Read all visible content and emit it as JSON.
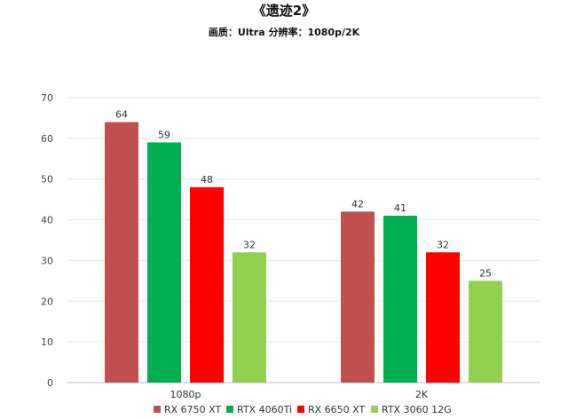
{
  "chart_data": {
    "type": "bar",
    "title": "《遗迹2》",
    "subtitle": "画质：Ultra  分辨率：1080p/2K",
    "categories": [
      "1080p",
      "2K"
    ],
    "series": [
      {
        "name": "RX 6750 XT",
        "color": "#C0504D",
        "values": [
          64,
          42
        ]
      },
      {
        "name": "RTX 4060Ti",
        "color": "#00B050",
        "values": [
          59,
          41
        ]
      },
      {
        "name": "RX 6650 XT",
        "color": "#FF0000",
        "values": [
          48,
          32
        ]
      },
      {
        "name": "RTX 3060 12G",
        "color": "#92D050",
        "values": [
          32,
          25
        ]
      }
    ],
    "ylim": [
      0,
      70
    ],
    "yticks": [
      0,
      10,
      20,
      30,
      40,
      50,
      60,
      70
    ],
    "grid": true,
    "legend_position": "bottom"
  }
}
